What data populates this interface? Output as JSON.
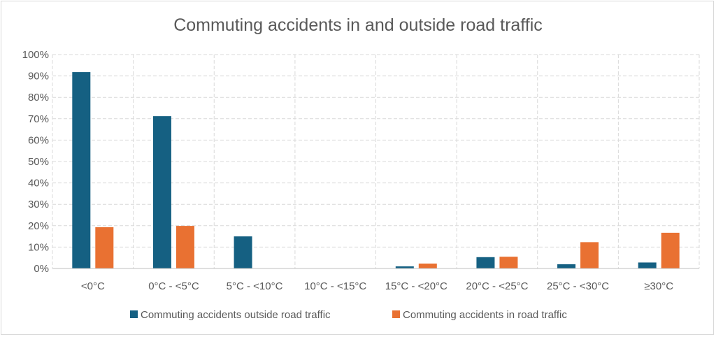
{
  "chart_data": {
    "type": "bar",
    "title": "Commuting accidents in and outside road traffic",
    "xlabel": "",
    "ylabel": "",
    "ylim": [
      0,
      100
    ],
    "yticks": [
      "0%",
      "10%",
      "20%",
      "30%",
      "40%",
      "50%",
      "60%",
      "70%",
      "80%",
      "90%",
      "100%"
    ],
    "categories": [
      "<0°C",
      "0°C - <5°C",
      "5°C - <10°C",
      "10°C - <15°C",
      "15°C - <20°C",
      "20°C - <25°C",
      "25°C - <30°C",
      "≥30°C"
    ],
    "series": [
      {
        "name": "Commuting accidents outside road traffic",
        "color": "#156082",
        "values": [
          91.8,
          71.2,
          15.0,
          0,
          1.0,
          5.3,
          2.0,
          2.8
        ]
      },
      {
        "name": "Commuting accidents in road traffic",
        "color": "#E97132",
        "values": [
          19.3,
          19.9,
          0,
          0,
          2.3,
          5.5,
          12.3,
          16.7
        ]
      }
    ],
    "grid": true,
    "legend": "bottom"
  }
}
